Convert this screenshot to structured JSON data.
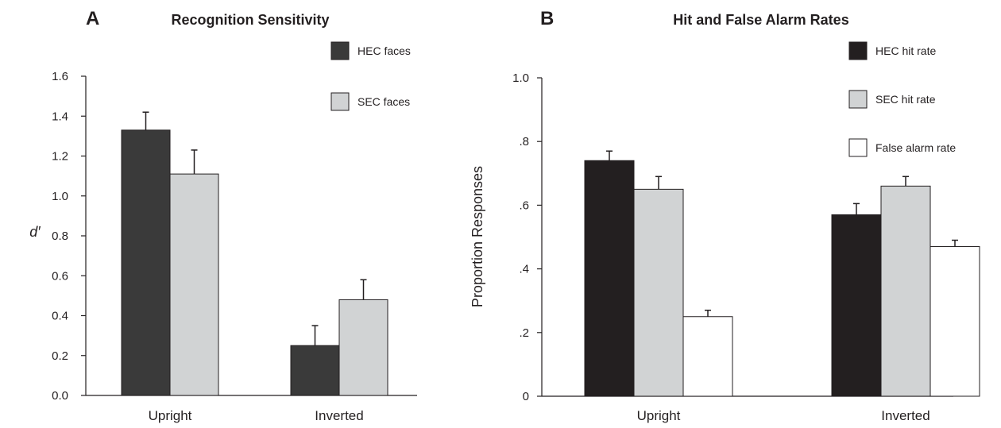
{
  "chart_data": [
    {
      "type": "bar",
      "panel_letter": "A",
      "title": "Recognition Sensitivity",
      "ylabel": "d′",
      "xlabel": "",
      "categories": [
        "Upright",
        "Inverted"
      ],
      "ylim": [
        0,
        1.6
      ],
      "yticks": [
        "0.0",
        "0.2",
        "0.4",
        "0.6",
        "0.8",
        "1.0",
        "1.2",
        "1.4",
        "1.6"
      ],
      "ytick_values": [
        0,
        0.2,
        0.4,
        0.6,
        0.8,
        1.0,
        1.2,
        1.4,
        1.6
      ],
      "grid": false,
      "legend_position": "top-right",
      "series": [
        {
          "name": "HEC faces",
          "color": "#3a3a3a",
          "values": [
            1.33,
            0.25
          ],
          "errors": [
            0.09,
            0.1
          ]
        },
        {
          "name": "SEC faces",
          "color": "#d1d3d4",
          "values": [
            1.11,
            0.48
          ],
          "errors": [
            0.12,
            0.1
          ]
        }
      ]
    },
    {
      "type": "bar",
      "panel_letter": "B",
      "title": "Hit and False Alarm Rates",
      "ylabel": "Proportion Responses",
      "xlabel": "",
      "categories": [
        "Upright",
        "Inverted"
      ],
      "ylim": [
        0,
        1.0
      ],
      "yticks": [
        "0",
        ".2",
        ".4",
        ".6",
        ".8",
        "1.0"
      ],
      "ytick_values": [
        0,
        0.2,
        0.4,
        0.6,
        0.8,
        1.0
      ],
      "grid": false,
      "legend_position": "top-right",
      "series": [
        {
          "name": "HEC hit rate",
          "color": "#231f20",
          "values": [
            0.74,
            0.57
          ],
          "errors": [
            0.03,
            0.035
          ]
        },
        {
          "name": "SEC hit rate",
          "color": "#d1d3d4",
          "values": [
            0.65,
            0.66
          ],
          "errors": [
            0.04,
            0.03
          ]
        },
        {
          "name": "False alarm rate",
          "color": "#ffffff",
          "values": [
            0.25,
            0.47
          ],
          "errors": [
            0.02,
            0.02
          ]
        }
      ]
    }
  ]
}
